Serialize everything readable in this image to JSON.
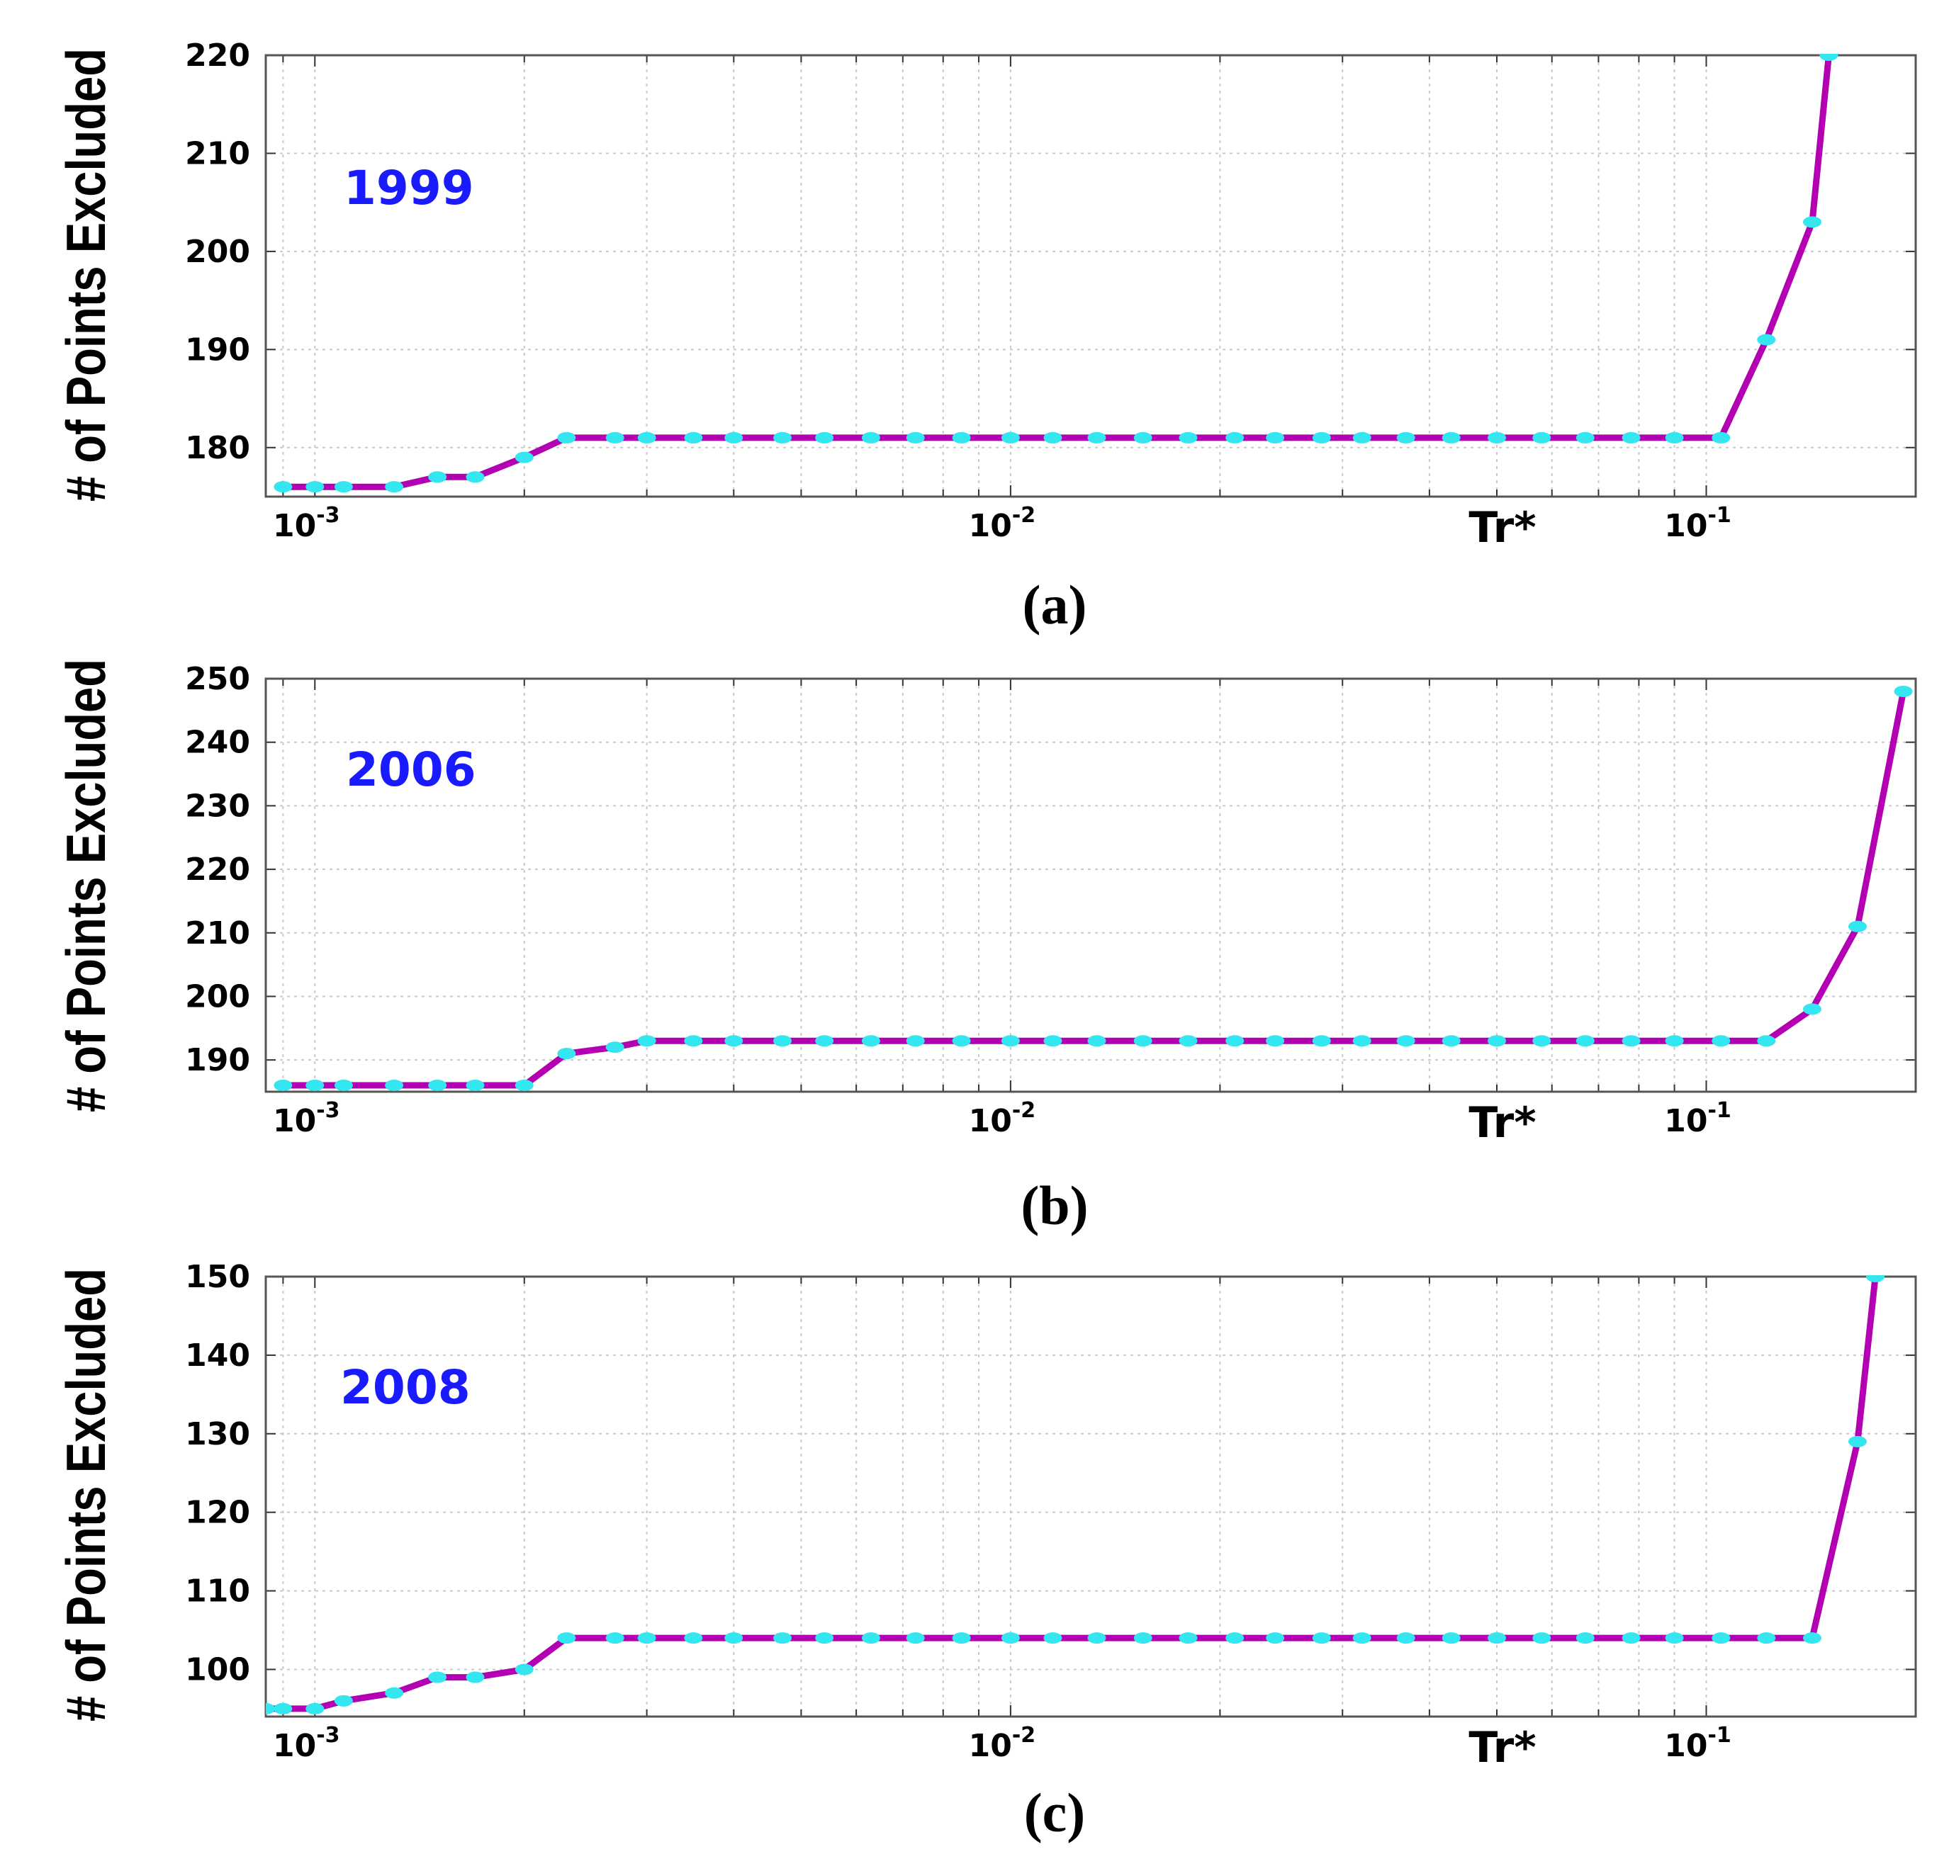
{
  "chart_data": [
    {
      "type": "line",
      "panel": "(a)",
      "year_label": "1999",
      "ylabel": "# of Points Excluded",
      "xlabel": "Tr*",
      "x_scale": "log",
      "xlim": [
        0.00085,
        0.2
      ],
      "ylim": [
        175,
        220
      ],
      "yticks": [
        180,
        190,
        200,
        210,
        220
      ],
      "xticks": [
        {
          "value": 0.001,
          "base": "10",
          "exp": "-3"
        },
        {
          "value": 0.01,
          "base": "10",
          "exp": "-2"
        },
        {
          "value": 0.1,
          "base": "10",
          "exp": "-1"
        }
      ],
      "grid": true,
      "line_color": "#b200b2",
      "marker_color": "#33e6ef",
      "series": [
        {
          "name": "1999",
          "x": [
            0.0009,
            0.001,
            0.0011,
            0.0013,
            0.0015,
            0.0017,
            0.002,
            0.0023,
            0.0027,
            0.003,
            0.0035,
            0.004,
            0.0047,
            0.0054,
            0.0063,
            0.0073,
            0.0085,
            0.01,
            0.0115,
            0.0133,
            0.0155,
            0.018,
            0.021,
            0.024,
            0.028,
            0.032,
            0.037,
            0.043,
            0.05,
            0.058,
            0.067,
            0.078,
            0.09,
            0.105,
            0.122,
            0.142,
            0.15
          ],
          "y": [
            176,
            176,
            176,
            176,
            177,
            177,
            179,
            181,
            181,
            181,
            181,
            181,
            181,
            181,
            181,
            181,
            181,
            181,
            181,
            181,
            181,
            181,
            181,
            181,
            181,
            181,
            181,
            181,
            181,
            181,
            181,
            181,
            181,
            181,
            191,
            203,
            220
          ]
        }
      ]
    },
    {
      "type": "line",
      "panel": "(b)",
      "year_label": "2006",
      "ylabel": "# of Points Excluded",
      "xlabel": "Tr*",
      "x_scale": "log",
      "xlim": [
        0.00085,
        0.2
      ],
      "ylim": [
        185,
        250
      ],
      "yticks": [
        190,
        200,
        210,
        220,
        230,
        240,
        250
      ],
      "xticks": [
        {
          "value": 0.001,
          "base": "10",
          "exp": "-3"
        },
        {
          "value": 0.01,
          "base": "10",
          "exp": "-2"
        },
        {
          "value": 0.1,
          "base": "10",
          "exp": "-1"
        }
      ],
      "grid": true,
      "line_color": "#b200b2",
      "marker_color": "#33e6ef",
      "series": [
        {
          "name": "2006",
          "x": [
            0.0009,
            0.001,
            0.0011,
            0.0013,
            0.0015,
            0.0017,
            0.002,
            0.0023,
            0.0027,
            0.003,
            0.0035,
            0.004,
            0.0047,
            0.0054,
            0.0063,
            0.0073,
            0.0085,
            0.01,
            0.0115,
            0.0133,
            0.0155,
            0.018,
            0.021,
            0.024,
            0.028,
            0.032,
            0.037,
            0.043,
            0.05,
            0.058,
            0.067,
            0.078,
            0.09,
            0.105,
            0.122,
            0.142,
            0.165,
            0.192
          ],
          "y": [
            186,
            186,
            186,
            186,
            186,
            186,
            186,
            191,
            192,
            193,
            193,
            193,
            193,
            193,
            193,
            193,
            193,
            193,
            193,
            193,
            193,
            193,
            193,
            193,
            193,
            193,
            193,
            193,
            193,
            193,
            193,
            193,
            193,
            193,
            193,
            198,
            211,
            248
          ]
        }
      ]
    },
    {
      "type": "line",
      "panel": "(c)",
      "year_label": "2008",
      "ylabel": "# of Points Excluded",
      "xlabel": "Tr*",
      "x_scale": "log",
      "xlim": [
        0.00085,
        0.2
      ],
      "ylim": [
        94,
        150
      ],
      "yticks": [
        100,
        110,
        120,
        130,
        140,
        150
      ],
      "xticks": [
        {
          "value": 0.001,
          "base": "10",
          "exp": "-3"
        },
        {
          "value": 0.01,
          "base": "10",
          "exp": "-2"
        },
        {
          "value": 0.1,
          "base": "10",
          "exp": "-1"
        }
      ],
      "grid": true,
      "line_color": "#b200b2",
      "marker_color": "#33e6ef",
      "series": [
        {
          "name": "2008",
          "x": [
            0.00085,
            0.0009,
            0.001,
            0.0011,
            0.0013,
            0.0015,
            0.0017,
            0.002,
            0.0023,
            0.0027,
            0.003,
            0.0035,
            0.004,
            0.0047,
            0.0054,
            0.0063,
            0.0073,
            0.0085,
            0.01,
            0.0115,
            0.0133,
            0.0155,
            0.018,
            0.021,
            0.024,
            0.028,
            0.032,
            0.037,
            0.043,
            0.05,
            0.058,
            0.067,
            0.078,
            0.09,
            0.105,
            0.122,
            0.142,
            0.165,
            0.175
          ],
          "y": [
            95,
            95,
            95,
            96,
            97,
            99,
            99,
            100,
            104,
            104,
            104,
            104,
            104,
            104,
            104,
            104,
            104,
            104,
            104,
            104,
            104,
            104,
            104,
            104,
            104,
            104,
            104,
            104,
            104,
            104,
            104,
            104,
            104,
            104,
            104,
            104,
            104,
            129,
            150
          ]
        }
      ]
    }
  ]
}
